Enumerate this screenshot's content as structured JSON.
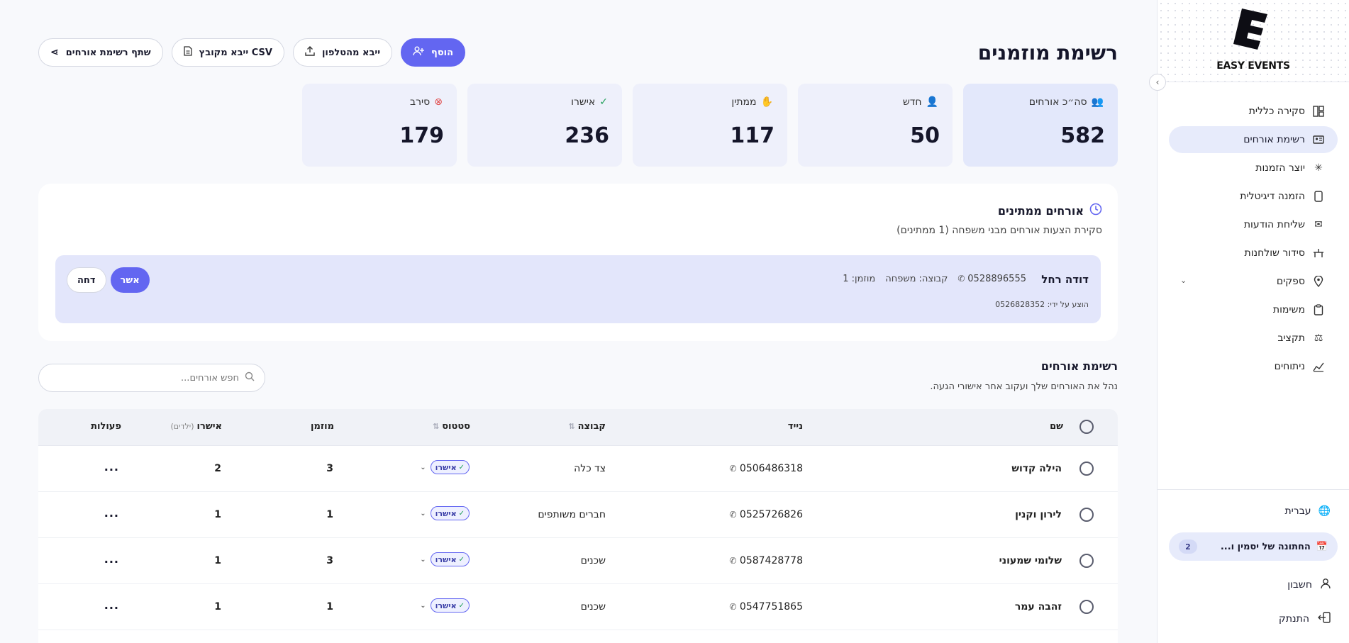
{
  "brand": {
    "logo_letter": "E",
    "name": "EASY EVENTS"
  },
  "sidebar": {
    "items": [
      {
        "label": "סקירה כללית",
        "icon": "dashboard-icon",
        "active": false
      },
      {
        "label": "רשימת אורחים",
        "icon": "guest-list-icon",
        "active": true
      },
      {
        "label": "יוצר הזמנות",
        "icon": "sparkle-icon",
        "active": false
      },
      {
        "label": "הזמנה דיגיטלית",
        "icon": "phone-icon",
        "active": false
      },
      {
        "label": "שליחת הודעות",
        "icon": "message-icon",
        "active": false
      },
      {
        "label": "סידור שולחנות",
        "icon": "table-icon",
        "active": false
      },
      {
        "label": "ספקים",
        "icon": "map-pin-icon",
        "active": false,
        "expandable": true
      },
      {
        "label": "משימות",
        "icon": "clipboard-icon",
        "active": false
      },
      {
        "label": "תקציב",
        "icon": "budget-icon",
        "active": false
      },
      {
        "label": "ניתוחים",
        "icon": "chart-icon",
        "active": false
      }
    ],
    "language": "עברית",
    "event": {
      "name": "החתונה של יסמין ו...",
      "count": "2"
    },
    "account": "חשבון",
    "logout": "התנתק"
  },
  "header": {
    "title": "רשימת מוזמנים",
    "actions": {
      "add": "הוסף",
      "import_phone": "ייבא מהטלפון",
      "import_csv": "ייבא מקובץ CSV",
      "share": "שתף רשימת אורחים"
    }
  },
  "stats": [
    {
      "label": "סה״כ אורחים",
      "value": "582",
      "icon": "users-icon",
      "color": "#6366f1"
    },
    {
      "label": "חדש",
      "value": "50",
      "icon": "user-plus-icon",
      "color": "#888888"
    },
    {
      "label": "ממתין",
      "value": "117",
      "icon": "pending-icon",
      "color": "#e0a030"
    },
    {
      "label": "אישרו",
      "value": "236",
      "icon": "approved-icon",
      "color": "#22a05a"
    },
    {
      "label": "סירב",
      "value": "179",
      "icon": "x-circle-icon",
      "color": "#e04848"
    }
  ],
  "pending": {
    "title": "אורחים ממתינים",
    "subtitle": "סקירת הצעות אורחים מבני משפחה (1 ממתינים)",
    "item": {
      "name": "דודה רחל",
      "phone": "0528896555",
      "group": "קבוצה: משפחה",
      "invited": "מוזמן: 1",
      "suggested_by": "הוצע על ידי: 0526828352",
      "approve": "אשר",
      "reject": "דחה"
    }
  },
  "guest_list": {
    "title": "רשימת אורחים",
    "subtitle": "נהל את האורחים שלך ועקוב אחר אישורי הגעה.",
    "search_placeholder": "חפש אורחים...",
    "columns": {
      "name": "שם",
      "phone": "נייד",
      "group": "קבוצה",
      "status": "סטטוס",
      "invited": "מוזמן",
      "confirmed": "אישרו",
      "children": "(ילדים)",
      "actions": "פעולות"
    },
    "rows": [
      {
        "name": "הילה קדוש",
        "phone": "0506486318",
        "group": "צד כלה",
        "status": "אישרו",
        "invited": "3",
        "confirmed": "2",
        "actions": "..."
      },
      {
        "name": "לירון וקנין",
        "phone": "0525726826",
        "group": "חברים משותפים",
        "status": "אישרו",
        "invited": "1",
        "confirmed": "1",
        "actions": "..."
      },
      {
        "name": "שלומי שמעוני",
        "phone": "0587428778",
        "group": "שכנים",
        "status": "אישרו",
        "invited": "3",
        "confirmed": "1",
        "actions": "..."
      },
      {
        "name": "זהבה עמר",
        "phone": "0547751865",
        "group": "שכנים",
        "status": "אישרו",
        "invited": "1",
        "confirmed": "1",
        "actions": "..."
      }
    ]
  }
}
